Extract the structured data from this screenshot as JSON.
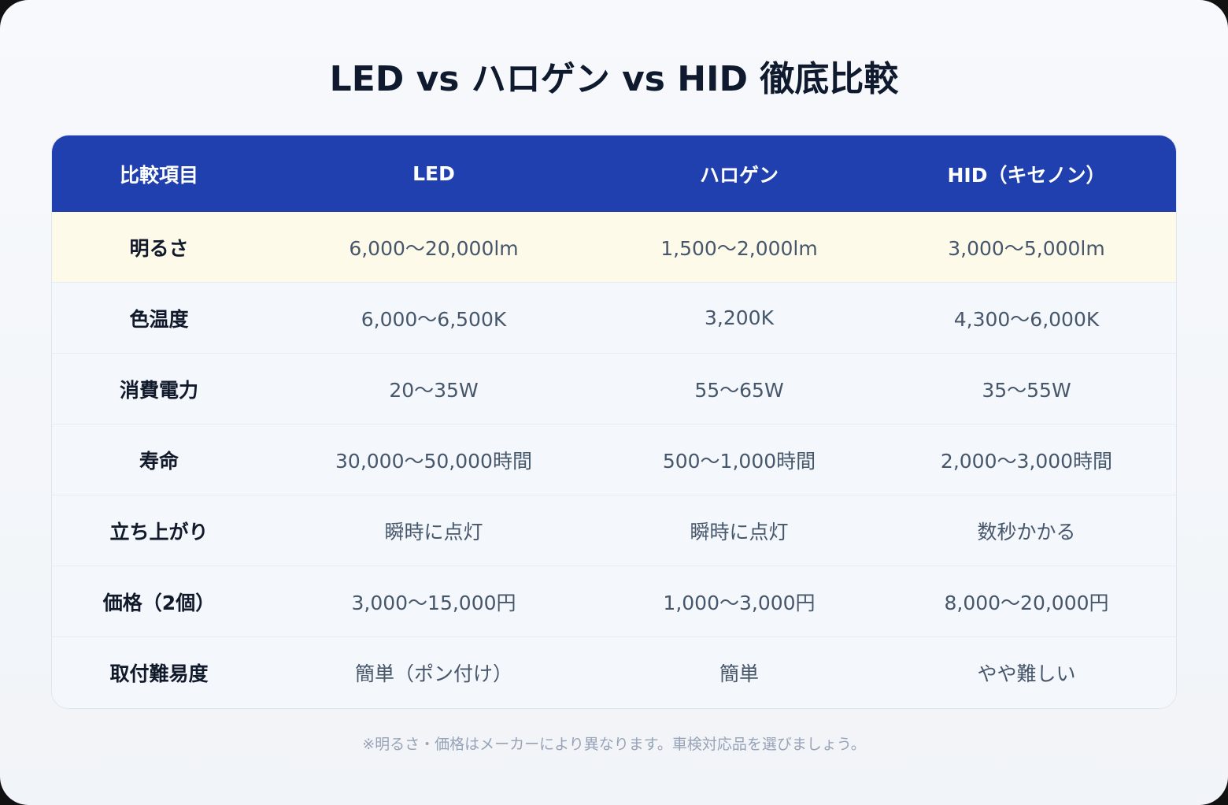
{
  "title": "LED vs ハロゲン vs HID 徹底比較",
  "table": {
    "headers": [
      "比較項目",
      "LED",
      "ハロゲン",
      "HID（キセノン）"
    ],
    "rows": [
      {
        "label": "明るさ",
        "led": "6,000〜20,000lm",
        "halogen": "1,500〜2,000lm",
        "hid": "3,000〜5,000lm",
        "highlighted": true
      },
      {
        "label": "色温度",
        "led": "6,000〜6,500K",
        "halogen": "3,200K",
        "hid": "4,300〜6,000K"
      },
      {
        "label": "消費電力",
        "led": "20〜35W",
        "halogen": "55〜65W",
        "hid": "35〜55W"
      },
      {
        "label": "寿命",
        "led": "30,000〜50,000時間",
        "halogen": "500〜1,000時間",
        "hid": "2,000〜3,000時間"
      },
      {
        "label": "立ち上がり",
        "led": "瞬時に点灯",
        "halogen": "瞬時に点灯",
        "hid": "数秒かかる"
      },
      {
        "label": "価格（2個）",
        "led": "3,000〜15,000円",
        "halogen": "1,000〜3,000円",
        "hid": "8,000〜20,000円"
      },
      {
        "label": "取付難易度",
        "led": "簡単（ポン付け）",
        "halogen": "簡単",
        "hid": "やや難しい"
      }
    ]
  },
  "note": "※明るさ・価格はメーカーにより異なります。車検対応品を選びましょう。",
  "colors": {
    "header_bg": "#1f40ae",
    "highlight_row_bg": "#fefae9",
    "title": "#0f1a2e",
    "cell_text": "#46566b",
    "note_text": "#97a3b6"
  }
}
